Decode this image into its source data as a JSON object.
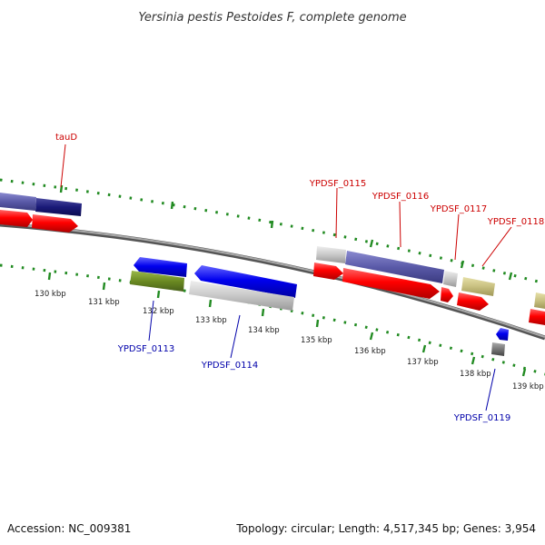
{
  "title": "Yersinia pestis Pestoides F, complete genome",
  "footer": {
    "accession": "Accession: NC_009381",
    "summary": "Topology: circular; Length: 4,517,345 bp; Genes: 3,954"
  },
  "ticks": [
    {
      "label": "130 kbp",
      "pos": 130
    },
    {
      "label": "131 kbp",
      "pos": 131
    },
    {
      "label": "132 kbp",
      "pos": 132
    },
    {
      "label": "133 kbp",
      "pos": 133
    },
    {
      "label": "134 kbp",
      "pos": 134
    },
    {
      "label": "135 kbp",
      "pos": 135
    },
    {
      "label": "136 kbp",
      "pos": 136
    },
    {
      "label": "137 kbp",
      "pos": 137
    },
    {
      "label": "138 kbp",
      "pos": 138
    },
    {
      "label": "139 kbp",
      "pos": 139
    }
  ],
  "gene_labels_top": [
    {
      "id": "tauD",
      "text": "tauD"
    },
    {
      "id": "YPDSF_0115",
      "text": "YPDSF_0115"
    },
    {
      "id": "YPDSF_0116",
      "text": "YPDSF_0116"
    },
    {
      "id": "YPDSF_0117",
      "text": "YPDSF_0117"
    },
    {
      "id": "YPDSF_0118",
      "text": "YPDSF_0118"
    }
  ],
  "gene_labels_bottom": [
    {
      "id": "YPDSF_0113",
      "text": "YPDSF_0113"
    },
    {
      "id": "YPDSF_0114",
      "text": "YPDSF_0114"
    },
    {
      "id": "YPDSF_0119",
      "text": "YPDSF_0119"
    }
  ],
  "colors": {
    "cds": "#ff0000",
    "cds_reverse": "#0000ee",
    "category_navy": "#1a1a78",
    "category_slate": "#5a5aa8",
    "category_gray": "#c8c8c8",
    "category_olive": "#6b8a22",
    "category_khaki": "#c8c080",
    "backbone": "#888888",
    "gc_dots": "#228b22"
  }
}
